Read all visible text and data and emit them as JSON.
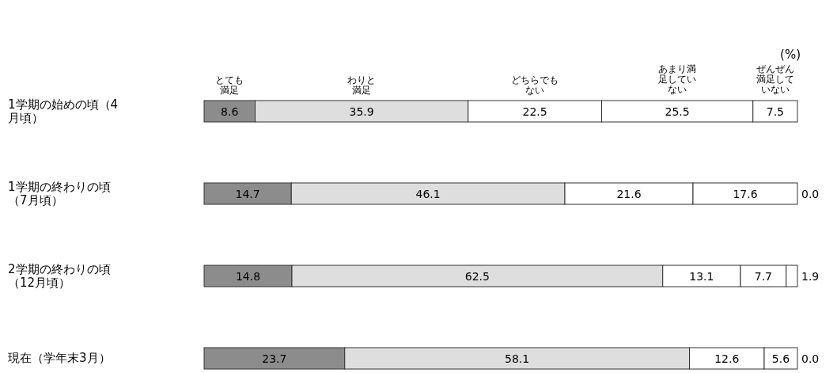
{
  "chart_data": {
    "type": "bar",
    "orientation": "horizontal",
    "stacked": true,
    "data_labels": true,
    "legend": "top",
    "grid": false,
    "tick_labels": "y",
    "annotations": [
      "(%)"
    ],
    "categories": [
      "1学期の始めの頃（4月頃）",
      "1学期の終わりの頃（7月頃）",
      "2学期の終わりの頃（12月頃）",
      "現在（学年末3月）"
    ],
    "series": [
      {
        "name": "とても満足",
        "color": "#8c8c8c",
        "values": [
          8.6,
          14.7,
          14.8,
          23.7
        ]
      },
      {
        "name": "わりと満足",
        "color": "#dedede",
        "values": [
          35.9,
          46.1,
          62.5,
          58.1
        ]
      },
      {
        "name": "どちらでもない",
        "color": "#ffffff",
        "values": [
          22.5,
          21.6,
          13.1,
          12.6
        ]
      },
      {
        "name": "あまり満足していない",
        "color": "#ffffff",
        "values": [
          25.5,
          17.6,
          7.7,
          5.6
        ]
      },
      {
        "name": "ぜんぜん満足していない",
        "color": "#ffffff",
        "values": [
          7.5,
          0.0,
          1.9,
          0.0
        ],
        "value_labels": [
          "7.5",
          "0.0",
          "1.9",
          "0.0"
        ]
      }
    ]
  }
}
